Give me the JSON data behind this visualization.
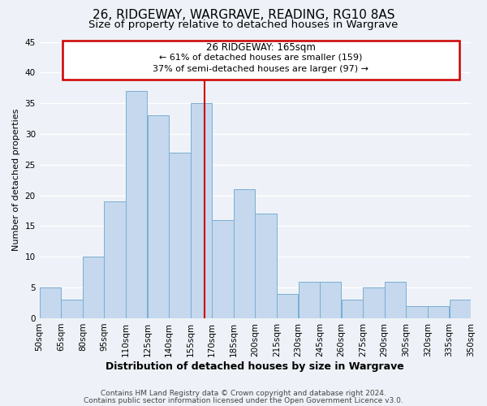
{
  "title": "26, RIDGEWAY, WARGRAVE, READING, RG10 8AS",
  "subtitle": "Size of property relative to detached houses in Wargrave",
  "xlabel": "Distribution of detached houses by size in Wargrave",
  "ylabel": "Number of detached properties",
  "bar_values": [
    5,
    3,
    10,
    19,
    37,
    33,
    27,
    35,
    16,
    21,
    17,
    4,
    6,
    6,
    3,
    5,
    6,
    2,
    2,
    3
  ],
  "bin_edges": [
    50,
    65,
    80,
    95,
    110,
    125,
    140,
    155,
    170,
    185,
    200,
    215,
    230,
    245,
    260,
    275,
    290,
    305,
    320,
    335,
    350
  ],
  "tick_labels": [
    "50sqm",
    "65sqm",
    "80sqm",
    "95sqm",
    "110sqm",
    "125sqm",
    "140sqm",
    "155sqm",
    "170sqm",
    "185sqm",
    "200sqm",
    "215sqm",
    "230sqm",
    "245sqm",
    "260sqm",
    "275sqm",
    "290sqm",
    "305sqm",
    "320sqm",
    "335sqm",
    "350sqm"
  ],
  "bar_color": "#c5d8ed",
  "bar_edgecolor": "#7aaed4",
  "red_line_x": 165,
  "ylim": [
    0,
    45
  ],
  "yticks": [
    0,
    5,
    10,
    15,
    20,
    25,
    30,
    35,
    40,
    45
  ],
  "annotation_title": "26 RIDGEWAY: 165sqm",
  "annotation_line1": "← 61% of detached houses are smaller (159)",
  "annotation_line2": "37% of semi-detached houses are larger (97) →",
  "annotation_box_edgecolor": "#cc0000",
  "footnote1": "Contains HM Land Registry data © Crown copyright and database right 2024.",
  "footnote2": "Contains public sector information licensed under the Open Government Licence v3.0.",
  "background_color": "#eef2f8",
  "grid_color": "#ffffff",
  "title_fontsize": 11,
  "subtitle_fontsize": 9.5,
  "xlabel_fontsize": 9,
  "ylabel_fontsize": 8,
  "tick_fontsize": 7.5,
  "annotation_title_fontsize": 8.5,
  "annotation_text_fontsize": 8,
  "footnote_fontsize": 6.5
}
